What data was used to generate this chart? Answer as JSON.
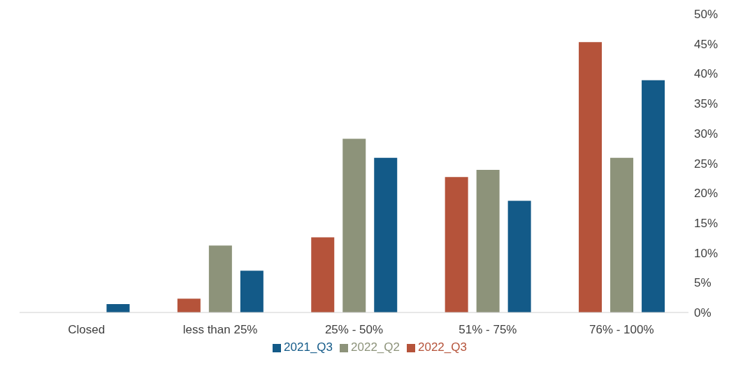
{
  "chart_data": {
    "type": "bar",
    "categories": [
      "Closed",
      "less than 25%",
      "25% - 50%",
      "51% - 75%",
      "76% - 100%"
    ],
    "series": [
      {
        "name": "2022_Q3",
        "color": "#b5533a",
        "values": [
          0,
          2.3,
          12.6,
          22.7,
          45.3
        ]
      },
      {
        "name": "2022_Q2",
        "color": "#8d937a",
        "values": [
          0,
          11.2,
          29.1,
          23.9,
          25.9
        ]
      },
      {
        "name": "2021_Q3",
        "color": "#135a88",
        "values": [
          1.4,
          7.0,
          25.9,
          18.7,
          38.9
        ]
      }
    ],
    "ylim": [
      0,
      50
    ],
    "yticks": [
      {
        "value": 0,
        "label": "0%"
      },
      {
        "value": 5,
        "label": "5%"
      },
      {
        "value": 10,
        "label": "10%"
      },
      {
        "value": 15,
        "label": "15%"
      },
      {
        "value": 20,
        "label": "20%"
      },
      {
        "value": 25,
        "label": "25%"
      },
      {
        "value": 30,
        "label": "30%"
      },
      {
        "value": 35,
        "label": "35%"
      },
      {
        "value": 40,
        "label": "40%"
      },
      {
        "value": 45,
        "label": "45%"
      },
      {
        "value": 50,
        "label": "50%"
      }
    ],
    "grid": false,
    "legend": "bottom"
  }
}
